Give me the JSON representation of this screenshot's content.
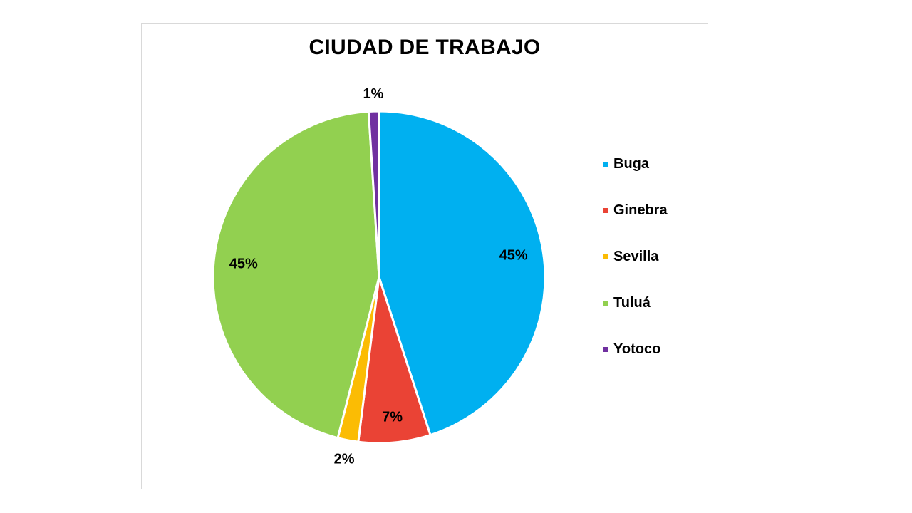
{
  "chart_data": {
    "type": "pie",
    "title": "CIUDAD DE TRABAJO",
    "categories": [
      "Buga",
      "Ginebra",
      "Sevilla",
      "Tuluá",
      "Yotoco"
    ],
    "values": [
      45,
      7,
      2,
      45,
      1
    ],
    "data_labels": [
      "45%",
      "7%",
      "2%",
      "45%",
      "1%"
    ],
    "colors": [
      "#00b0f0",
      "#ea4335",
      "#fbbc04",
      "#92d050",
      "#7030a0"
    ],
    "legend_position": "right"
  }
}
